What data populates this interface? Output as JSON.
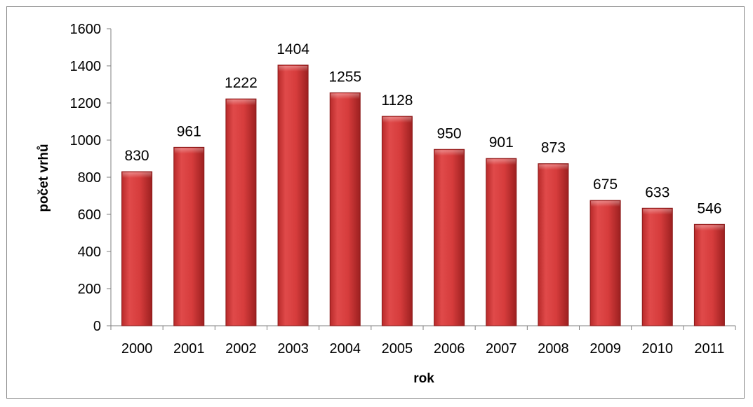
{
  "chart_data": {
    "type": "bar",
    "categories": [
      "2000",
      "2001",
      "2002",
      "2003",
      "2004",
      "2005",
      "2006",
      "2007",
      "2008",
      "2009",
      "2010",
      "2011"
    ],
    "values": [
      830,
      961,
      1222,
      1404,
      1255,
      1128,
      950,
      901,
      873,
      675,
      633,
      546
    ],
    "title": "",
    "xlabel": "rok",
    "ylabel": "počet vrhů",
    "ylim": [
      0,
      1600
    ],
    "yticks": [
      0,
      200,
      400,
      600,
      800,
      1000,
      1200,
      1400,
      1600
    ],
    "grid": false,
    "legend": "none",
    "bar_color": "#d63c3c",
    "bar_edge_color": "#8b1a1a"
  }
}
